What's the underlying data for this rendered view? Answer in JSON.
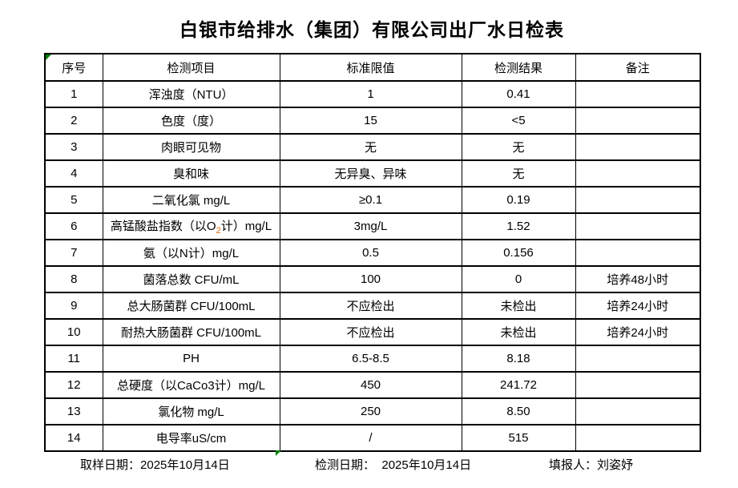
{
  "title": "白银市给排水（集团）有限公司出厂水日检表",
  "table": {
    "headers": [
      "序号",
      "检测项目",
      "标准限值",
      "检测结果",
      "备注"
    ],
    "rows": [
      {
        "no": "1",
        "item": "浑浊度（NTU）",
        "limit": "1",
        "result": "0.41",
        "remark": ""
      },
      {
        "no": "2",
        "item": "色度（度）",
        "limit": "15",
        "result": "<5",
        "remark": ""
      },
      {
        "no": "3",
        "item": "肉眼可见物",
        "limit": "无",
        "result": "无",
        "remark": ""
      },
      {
        "no": "4",
        "item": "臭和味",
        "limit": "无异臭、异味",
        "result": "无",
        "remark": ""
      },
      {
        "no": "5",
        "item": "二氧化氯 mg/L",
        "limit": "≥0.1",
        "result": "0.19",
        "remark": ""
      },
      {
        "no": "6",
        "item_parts": [
          {
            "text": "高锰酸盐指数（以O"
          },
          {
            "text": "2",
            "subscript": true,
            "color": "#e36c0a"
          },
          {
            "text": "计）mg/L"
          }
        ],
        "limit": "3mg/L",
        "result": "1.52",
        "remark": ""
      },
      {
        "no": "7",
        "item": "氨（以N计）mg/L",
        "limit": "0.5",
        "result": "0.156",
        "remark": ""
      },
      {
        "no": "8",
        "item": "菌落总数 CFU/mL",
        "limit": "100",
        "result": "0",
        "remark": "培养48小时"
      },
      {
        "no": "9",
        "item": "总大肠菌群 CFU/100mL",
        "limit": "不应检出",
        "result": "未检出",
        "remark": "培养24小时"
      },
      {
        "no": "10",
        "item": "耐热大肠菌群 CFU/100mL",
        "limit": "不应检出",
        "result": "未检出",
        "remark": "培养24小时"
      },
      {
        "no": "11",
        "item": "PH",
        "limit": "6.5-8.5",
        "result": "8.18",
        "remark": ""
      },
      {
        "no": "12",
        "item": "总硬度（以CaCo3计）mg/L",
        "limit": "450",
        "result": "241.72",
        "remark": ""
      },
      {
        "no": "13",
        "item": "氯化物 mg/L",
        "limit": "250",
        "result": "8.50",
        "remark": ""
      },
      {
        "no": "14",
        "item": "电导率uS/cm",
        "limit": "/",
        "result": "515",
        "remark": ""
      }
    ]
  },
  "footer": {
    "sampling_date_label": "取样日期：",
    "sampling_date": "2025年10月14日",
    "test_date_label": "检测日期：",
    "test_date": "2025年10月14日",
    "reporter_label": "填报人：",
    "reporter": "刘姿妤"
  },
  "colors": {
    "border": "#000000",
    "marker_green": "#008000",
    "subscript_orange": "#e36c0a",
    "background": "#ffffff",
    "text": "#000000"
  }
}
